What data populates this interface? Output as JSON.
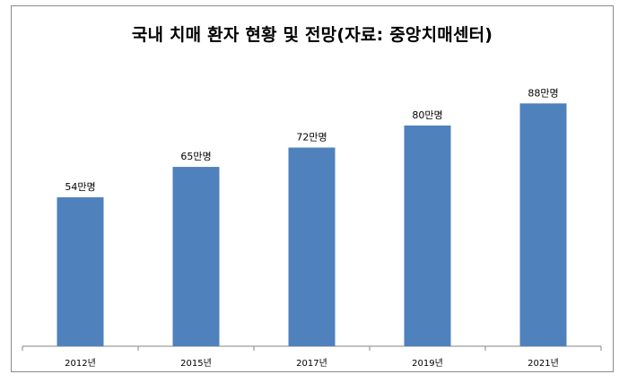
{
  "chart_data": {
    "type": "bar",
    "title": "국내 치매 환자  현황 및 전망(자료: 중앙치매센터)",
    "categories": [
      "2012년",
      "2015년",
      "2017년",
      "2019년",
      "2021년"
    ],
    "values": [
      54,
      65,
      72,
      80,
      88
    ],
    "data_labels": [
      "54만명",
      "65만명",
      "72만명",
      "80만명",
      "88만명"
    ],
    "ylim": [
      0,
      100
    ],
    "bar_color": "#4f81bd",
    "grid": false,
    "legend": "none"
  }
}
